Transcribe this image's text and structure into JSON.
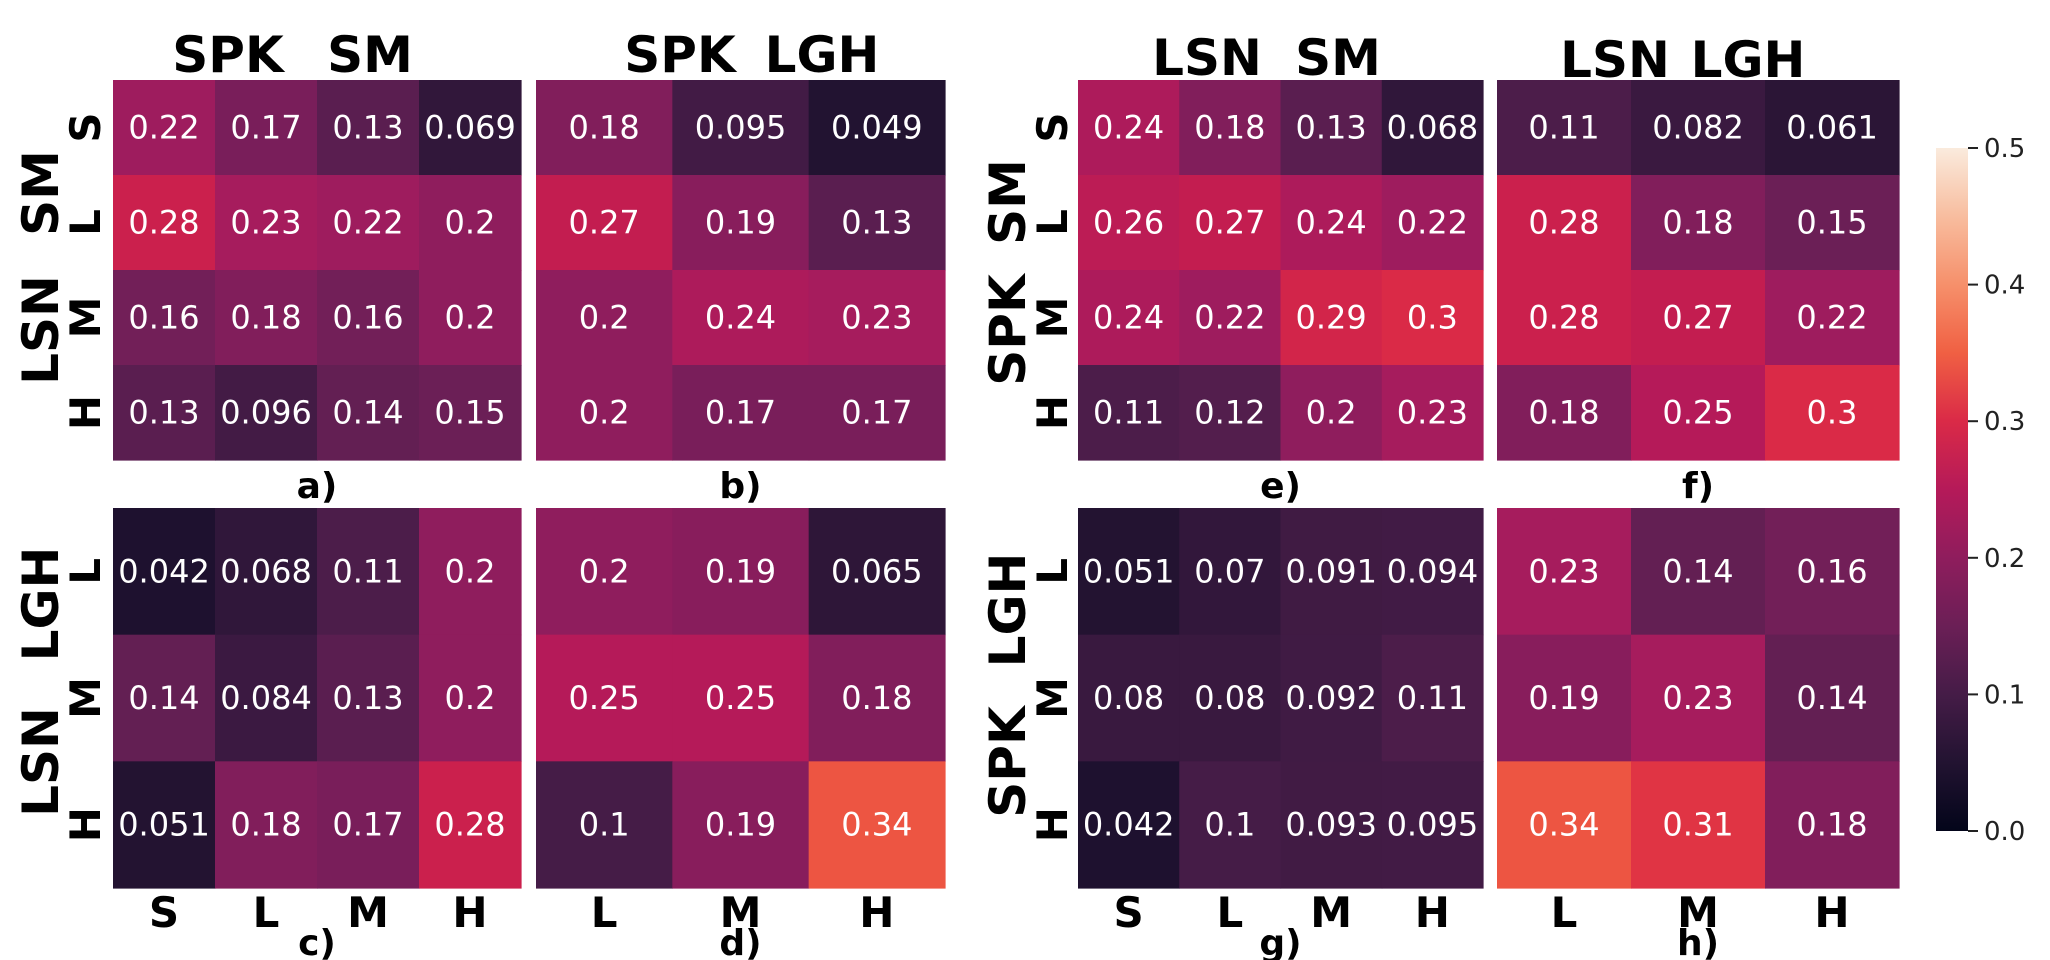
{
  "chart_data": {
    "type": "heatmap",
    "colormap": "rocket",
    "colorbar": {
      "min": 0.0,
      "max": 0.5,
      "ticks": [
        "0.0",
        "0.1",
        "0.2",
        "0.3",
        "0.4",
        "0.5"
      ]
    },
    "labels": {
      "top": [
        "SPK",
        "SM",
        "SPK",
        "LGH",
        "LSN",
        "SM",
        "LSN",
        "LGH"
      ],
      "left": [
        "LSN",
        "SM",
        "LSN",
        "LGH",
        "SPK",
        "SM",
        "SPK",
        "LGH"
      ]
    },
    "panels": [
      {
        "label": "a)",
        "rows": [
          "S",
          "L",
          "M",
          "H"
        ],
        "cols": [
          "S",
          "L",
          "M",
          "H"
        ],
        "values": [
          [
            "0.22",
            "0.17",
            "0.13",
            "0.069"
          ],
          [
            "0.28",
            "0.23",
            "0.22",
            "0.2"
          ],
          [
            "0.16",
            "0.18",
            "0.16",
            "0.2"
          ],
          [
            "0.13",
            "0.096",
            "0.14",
            "0.15"
          ]
        ]
      },
      {
        "label": "b)",
        "rows": [
          "S",
          "L",
          "M",
          "H"
        ],
        "cols": [
          "L",
          "M",
          "H"
        ],
        "values": [
          [
            "0.18",
            "0.095",
            "0.049"
          ],
          [
            "0.27",
            "0.19",
            "0.13"
          ],
          [
            "0.2",
            "0.24",
            "0.23"
          ],
          [
            "0.2",
            "0.17",
            "0.17"
          ]
        ]
      },
      {
        "label": "c)",
        "rows": [
          "L",
          "M",
          "H"
        ],
        "cols": [
          "S",
          "L",
          "M",
          "H"
        ],
        "values": [
          [
            "0.042",
            "0.068",
            "0.11",
            "0.2"
          ],
          [
            "0.14",
            "0.084",
            "0.13",
            "0.2"
          ],
          [
            "0.051",
            "0.18",
            "0.17",
            "0.28"
          ]
        ]
      },
      {
        "label": "d)",
        "rows": [
          "L",
          "M",
          "H"
        ],
        "cols": [
          "L",
          "M",
          "H"
        ],
        "values": [
          [
            "0.2",
            "0.19",
            "0.065"
          ],
          [
            "0.25",
            "0.25",
            "0.18"
          ],
          [
            "0.1",
            "0.19",
            "0.34"
          ]
        ]
      },
      {
        "label": "e)",
        "rows": [
          "S",
          "L",
          "M",
          "H"
        ],
        "cols": [
          "S",
          "L",
          "M",
          "H"
        ],
        "values": [
          [
            "0.24",
            "0.18",
            "0.13",
            "0.068"
          ],
          [
            "0.26",
            "0.27",
            "0.24",
            "0.22"
          ],
          [
            "0.24",
            "0.22",
            "0.29",
            "0.3"
          ],
          [
            "0.11",
            "0.12",
            "0.2",
            "0.23"
          ]
        ]
      },
      {
        "label": "f)",
        "rows": [
          "S",
          "L",
          "M",
          "H"
        ],
        "cols": [
          "L",
          "M",
          "H"
        ],
        "values": [
          [
            "0.11",
            "0.082",
            "0.061"
          ],
          [
            "0.28",
            "0.18",
            "0.15"
          ],
          [
            "0.28",
            "0.27",
            "0.22"
          ],
          [
            "0.18",
            "0.25",
            "0.3"
          ]
        ]
      },
      {
        "label": "g)",
        "rows": [
          "L",
          "M",
          "H"
        ],
        "cols": [
          "S",
          "L",
          "M",
          "H"
        ],
        "values": [
          [
            "0.051",
            "0.07",
            "0.091",
            "0.094"
          ],
          [
            "0.08",
            "0.08",
            "0.092",
            "0.11"
          ],
          [
            "0.042",
            "0.1",
            "0.093",
            "0.095"
          ]
        ]
      },
      {
        "label": "h)",
        "rows": [
          "L",
          "M",
          "H"
        ],
        "cols": [
          "L",
          "M",
          "H"
        ],
        "values": [
          [
            "0.23",
            "0.14",
            "0.16"
          ],
          [
            "0.19",
            "0.23",
            "0.14"
          ],
          [
            "0.34",
            "0.31",
            "0.18"
          ]
        ]
      }
    ]
  }
}
